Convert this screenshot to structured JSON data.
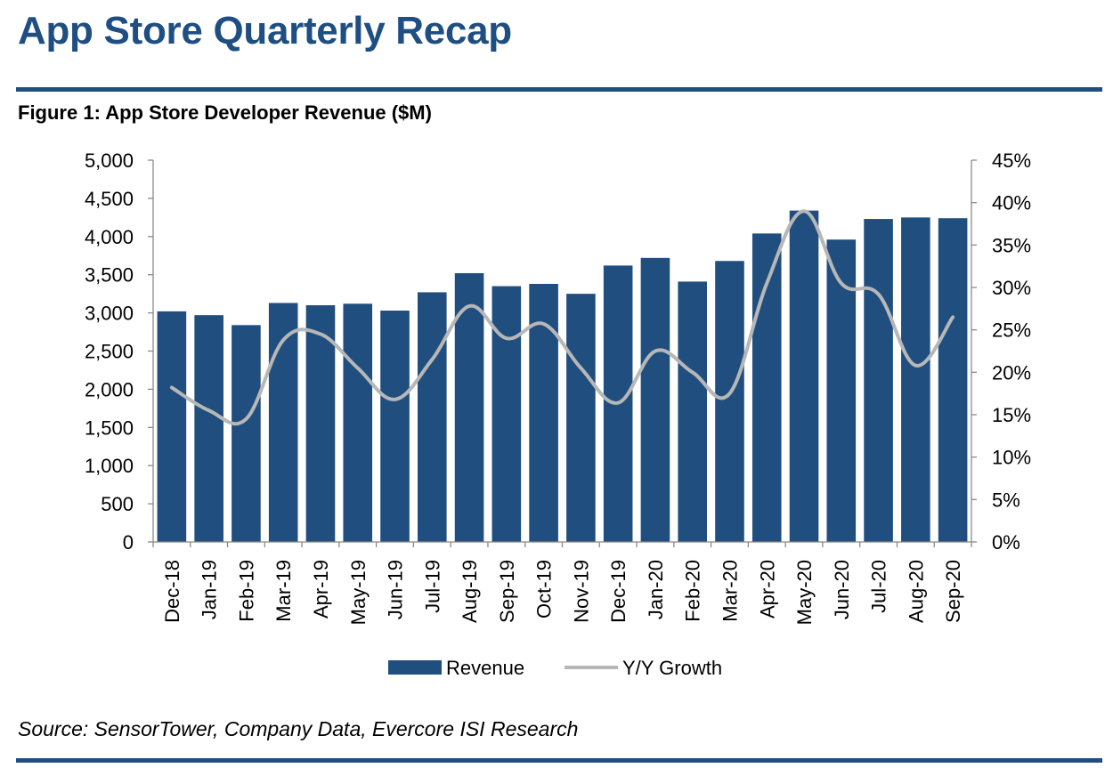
{
  "header": {
    "title": "App Store Quarterly Recap"
  },
  "figure": {
    "title": "Figure 1: App Store Developer Revenue ($M)",
    "source": "Source: SensorTower, Company Data, Evercore ISI Research"
  },
  "colors": {
    "brand": "#1f4e82",
    "bar": "#1f4e7f",
    "line": "#b7b7b7"
  },
  "chart_data": {
    "type": "bar",
    "categories": [
      "Dec-18",
      "Jan-19",
      "Feb-19",
      "Mar-19",
      "Apr-19",
      "May-19",
      "Jun-19",
      "Jul-19",
      "Aug-19",
      "Sep-19",
      "Oct-19",
      "Nov-19",
      "Dec-19",
      "Jan-20",
      "Feb-20",
      "Mar-20",
      "Apr-20",
      "May-20",
      "Jun-20",
      "Jul-20",
      "Aug-20",
      "Sep-20"
    ],
    "series": [
      {
        "name": "Revenue",
        "type": "bar",
        "axis": "left",
        "values": [
          3020,
          2970,
          2840,
          3130,
          3100,
          3120,
          3030,
          3270,
          3520,
          3350,
          3380,
          3250,
          3620,
          3720,
          3410,
          3680,
          4040,
          4340,
          3960,
          4230,
          4250,
          4240
        ]
      },
      {
        "name": "Y/Y Growth",
        "type": "line",
        "axis": "right",
        "values": [
          18.2,
          15.5,
          14.5,
          23.8,
          24.5,
          20.5,
          16.8,
          21.5,
          27.8,
          24.0,
          25.7,
          20.5,
          16.4,
          22.5,
          20.0,
          17.5,
          30.5,
          39.0,
          30.5,
          29.2,
          20.8,
          26.5
        ]
      }
    ],
    "y_left": {
      "range": [
        0,
        5000
      ],
      "ticks": [
        "0",
        "500",
        "1,000",
        "1,500",
        "2,000",
        "2,500",
        "3,000",
        "3,500",
        "4,000",
        "4,500",
        "5,000"
      ]
    },
    "y_right": {
      "range": [
        0,
        45
      ],
      "ticks": [
        "0%",
        "5%",
        "10%",
        "15%",
        "20%",
        "25%",
        "30%",
        "35%",
        "40%",
        "45%"
      ]
    },
    "grid": false,
    "legend": "bottom"
  }
}
